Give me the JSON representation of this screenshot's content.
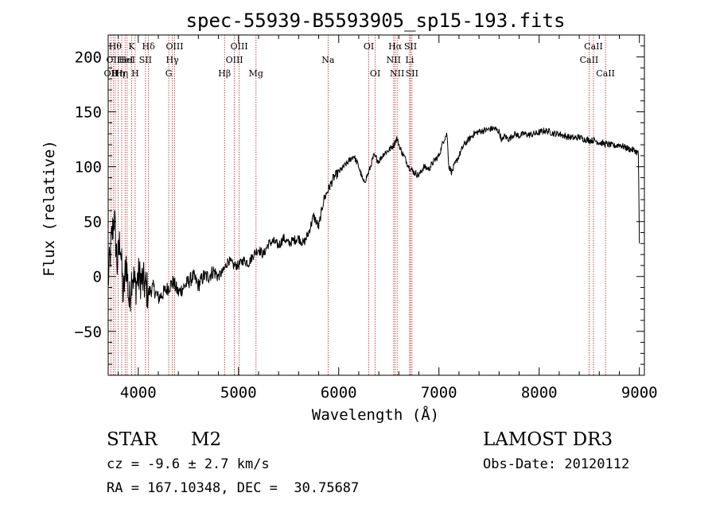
{
  "chart_data": {
    "type": "line",
    "title": "spec-55939-B5593905_sp15-193.fits",
    "xlabel": "Wavelength (Å)",
    "ylabel": "Flux (relative)",
    "xlim": [
      3700,
      9050
    ],
    "ylim": [
      -90,
      220
    ],
    "xticks": [
      4000,
      5000,
      6000,
      7000,
      8000,
      9000
    ],
    "yticks": [
      -50,
      0,
      50,
      100,
      150,
      200
    ],
    "series": [
      {
        "name": "flux",
        "x": [
          3700,
          3730,
          3760,
          3790,
          3820,
          3850,
          3880,
          3910,
          3940,
          3970,
          4000,
          4050,
          4100,
          4150,
          4200,
          4250,
          4300,
          4350,
          4400,
          4450,
          4500,
          4550,
          4600,
          4650,
          4700,
          4750,
          4800,
          4850,
          4900,
          4950,
          5000,
          5050,
          5100,
          5150,
          5200,
          5250,
          5300,
          5350,
          5400,
          5450,
          5500,
          5550,
          5600,
          5650,
          5700,
          5750,
          5800,
          5850,
          5900,
          5950,
          6000,
          6050,
          6100,
          6150,
          6200,
          6250,
          6300,
          6350,
          6400,
          6450,
          6500,
          6550,
          6580,
          6620,
          6650,
          6700,
          6750,
          6800,
          6850,
          6900,
          6950,
          7000,
          7050,
          7080,
          7100,
          7130,
          7150,
          7200,
          7250,
          7300,
          7350,
          7400,
          7450,
          7500,
          7550,
          7600,
          7630,
          7650,
          7700,
          7750,
          7800,
          7850,
          7900,
          7950,
          8000,
          8050,
          8100,
          8150,
          8200,
          8250,
          8300,
          8350,
          8400,
          8450,
          8500,
          8550,
          8600,
          8650,
          8700,
          8750,
          8800,
          8850,
          8900,
          8950,
          8990,
          9000
        ],
        "values": [
          -5,
          30,
          55,
          10,
          35,
          -20,
          15,
          -25,
          5,
          -10,
          0,
          -5,
          -15,
          -10,
          -20,
          -15,
          -10,
          -5,
          -15,
          -10,
          -5,
          0,
          -8,
          0,
          0,
          5,
          0,
          5,
          15,
          10,
          10,
          15,
          12,
          20,
          25,
          20,
          30,
          32,
          28,
          35,
          30,
          33,
          35,
          30,
          40,
          55,
          45,
          70,
          80,
          90,
          95,
          100,
          105,
          110,
          100,
          85,
          95,
          110,
          105,
          112,
          115,
          120,
          126,
          115,
          110,
          100,
          95,
          92,
          100,
          98,
          105,
          110,
          125,
          130,
          100,
          95,
          100,
          110,
          120,
          125,
          130,
          132,
          133,
          134,
          135,
          132,
          123,
          128,
          125,
          130,
          128,
          130,
          129,
          130,
          131,
          133,
          132,
          130,
          130,
          128,
          127,
          126,
          127,
          125,
          124,
          124,
          122,
          121,
          120,
          119,
          120,
          118,
          116,
          115,
          112,
          30
        ]
      }
    ],
    "lines": [
      {
        "wavelength": 3727,
        "label": "OII",
        "row": 2
      },
      {
        "wavelength": 3750,
        "label": "OII",
        "row": 1
      },
      {
        "wavelength": 3770,
        "label": "Hθ",
        "row": 0
      },
      {
        "wavelength": 3799,
        "label": "Hη",
        "row": 2
      },
      {
        "wavelength": 3835,
        "label": "Hη",
        "row": 2
      },
      {
        "wavelength": 3869,
        "label": "HeI",
        "row": 1
      },
      {
        "wavelength": 3889,
        "label": "HeI",
        "row": 1
      },
      {
        "wavelength": 3934,
        "label": "K",
        "row": 0
      },
      {
        "wavelength": 3969,
        "label": "H",
        "row": 2
      },
      {
        "wavelength": 4072,
        "label": "SII",
        "row": 1
      },
      {
        "wavelength": 4102,
        "label": "Hδ",
        "row": 0
      },
      {
        "wavelength": 4304,
        "label": "G",
        "row": 2
      },
      {
        "wavelength": 4340,
        "label": "Hγ",
        "row": 1
      },
      {
        "wavelength": 4363,
        "label": "OIII",
        "row": 0
      },
      {
        "wavelength": 4861,
        "label": "Hβ",
        "row": 2
      },
      {
        "wavelength": 4959,
        "label": "OIII",
        "row": 1
      },
      {
        "wavelength": 5007,
        "label": "OIII",
        "row": 0
      },
      {
        "wavelength": 5175,
        "label": "Mg",
        "row": 2
      },
      {
        "wavelength": 5894,
        "label": "Na",
        "row": 1
      },
      {
        "wavelength": 6300,
        "label": "OI",
        "row": 0
      },
      {
        "wavelength": 6364,
        "label": "OI",
        "row": 2
      },
      {
        "wavelength": 6548,
        "label": "NII",
        "row": 1
      },
      {
        "wavelength": 6563,
        "label": "Hα",
        "row": 0
      },
      {
        "wavelength": 6583,
        "label": "NII",
        "row": 2
      },
      {
        "wavelength": 6708,
        "label": "Li",
        "row": 1
      },
      {
        "wavelength": 6716,
        "label": "SII",
        "row": 0
      },
      {
        "wavelength": 6731,
        "label": "SII",
        "row": 2
      },
      {
        "wavelength": 8498,
        "label": "CaII",
        "row": 1
      },
      {
        "wavelength": 8542,
        "label": "CaII",
        "row": 0
      },
      {
        "wavelength": 8662,
        "label": "CaII",
        "row": 2
      }
    ]
  },
  "info": {
    "object_class": "STAR",
    "subclass": "M2",
    "survey": "LAMOST DR3",
    "redshift": "cz = -9.6 ± 2.7 km/s",
    "obs_date": "Obs-Date: 20120112",
    "coords": "RA = 167.10348, DEC =  30.75687"
  },
  "colors": {
    "line_marker": "#b22222",
    "spectrum": "#000000"
  }
}
